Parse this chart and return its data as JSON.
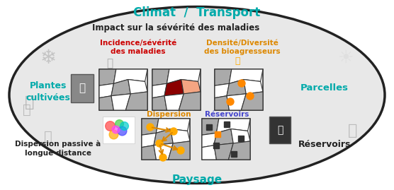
{
  "bg_color": "#f0f0f0",
  "ellipse_color": "#e8e8e8",
  "ellipse_edge": "#222222",
  "title_top": "Climat  /  Transport",
  "title_top_color": "#00aaaa",
  "subtitle": "Impact sur la sévérité des maladies",
  "subtitle_color": "#222222",
  "label_incidence": "Incidence/sévérité\ndes maladies",
  "label_incidence_color": "#cc0000",
  "label_densite": "Densité/Diversité\ndes bioagresseurs",
  "label_densite_color": "#dd8800",
  "label_dispersion": "Dispersion",
  "label_dispersion_color": "#dd8800",
  "label_reservoirs": "Réservoirs",
  "label_reservoirs_color": "#4444cc",
  "label_plantes": "Plantes\ncultivées",
  "label_plantes_color": "#00aaaa",
  "label_parcelles": "Parcelles",
  "label_parcelles_color": "#00aaaa",
  "label_paysage": "Paysage",
  "label_paysage_color": "#00aaaa",
  "label_dispersion_passive": "Dispersion passive à\nlongue distance",
  "label_dispersion_passive_color": "#222222",
  "label_reservoirs_bottom": "Réservoirs",
  "label_reservoirs_bottom_color": "#222222"
}
